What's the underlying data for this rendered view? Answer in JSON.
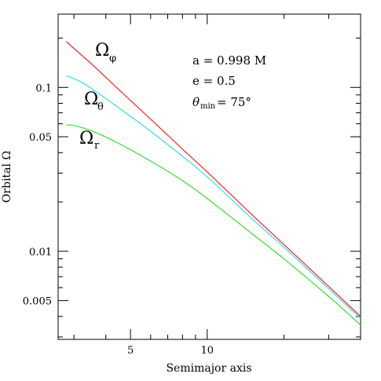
{
  "chart_data": {
    "type": "line",
    "title": "",
    "xlabel": "Semimajor axis",
    "ylabel": "Orbital Ω",
    "xscale": "log",
    "yscale": "log",
    "xlim": [
      2.6,
      40
    ],
    "ylim": [
      0.0029,
      0.28
    ],
    "x_major_ticks": [
      5,
      10
    ],
    "x_minor_ticks": [
      3,
      4,
      6,
      7,
      8,
      9,
      20,
      30,
      40
    ],
    "y_major_ticks": [
      0.005,
      0.01,
      0.05,
      0.1
    ],
    "y_minor_ticks": [
      0.003,
      0.004,
      0.006,
      0.007,
      0.008,
      0.009,
      0.02,
      0.03,
      0.04,
      0.06,
      0.07,
      0.08,
      0.09,
      0.2
    ],
    "x_tick_labels": [
      "5",
      "10"
    ],
    "y_tick_labels": [
      "0.005",
      "0.01",
      "0.05",
      "0.1"
    ],
    "grid": false,
    "parameters": {
      "spin": "a = 0.998 M",
      "eccentricity": "e = 0.5",
      "theta_symbol": "θ",
      "theta_sub": "min",
      "theta_value": "= 75°"
    },
    "series": [
      {
        "name": "Ωφ",
        "symbol": "Ω",
        "subscript": "φ",
        "color": "#ff2222",
        "x": [
          2.8,
          3.5,
          4.5,
          6,
          8,
          10,
          15,
          20,
          30,
          40
        ],
        "y": [
          0.19,
          0.14,
          0.097,
          0.064,
          0.042,
          0.0305,
          0.0167,
          0.011,
          0.0061,
          0.004
        ]
      },
      {
        "name": "Ωθ",
        "symbol": "Ω",
        "subscript": "θ",
        "color": "#33ddee",
        "x": [
          2.8,
          3.2,
          3.6,
          4.5,
          6,
          8,
          10,
          15,
          20,
          30,
          40
        ],
        "y": [
          0.118,
          0.108,
          0.096,
          0.075,
          0.054,
          0.038,
          0.0285,
          0.0158,
          0.0106,
          0.0059,
          0.0039
        ]
      },
      {
        "name": "Ωr",
        "symbol": "Ω",
        "subscript": "r",
        "color": "#33dd33",
        "x": [
          2.8,
          3.0,
          3.5,
          4.5,
          6,
          8,
          10,
          15,
          20,
          30,
          40
        ],
        "y": [
          0.059,
          0.0585,
          0.0545,
          0.0455,
          0.0355,
          0.027,
          0.021,
          0.0128,
          0.009,
          0.0053,
          0.00355
        ]
      }
    ]
  }
}
